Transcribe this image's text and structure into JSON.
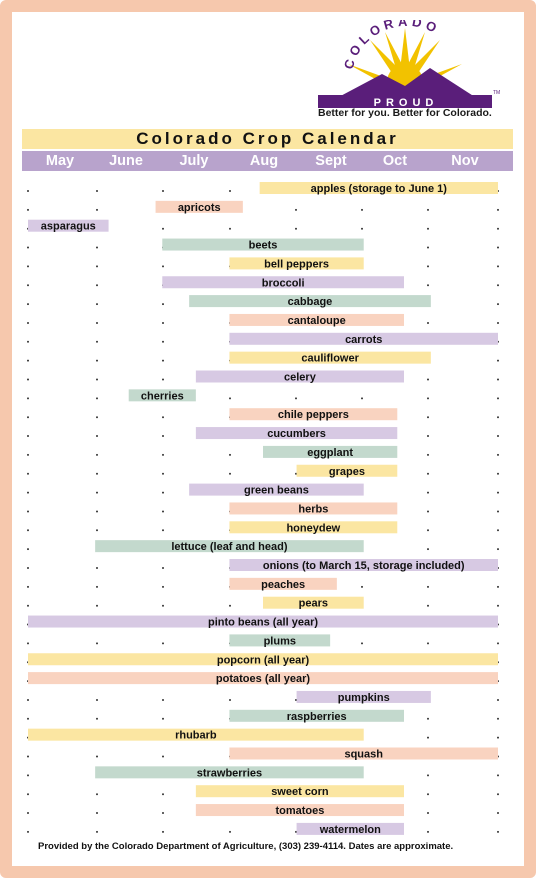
{
  "logo": {
    "arc_text": "COLORADO",
    "banner_text": "PROUD",
    "trademark": "TM",
    "tagline": "Better for you. Better for Colorado.",
    "colors": {
      "sun": "#f2c200",
      "mountain": "#5a1e7a",
      "banner": "#ffffff"
    }
  },
  "chart_data": {
    "type": "bar",
    "orientation": "horizontal",
    "title": "Colorado Crop Calendar",
    "months": [
      "May",
      "June",
      "July",
      "Aug",
      "Sept",
      "Oct",
      "Nov"
    ],
    "bar_colors": {
      "yellow": "#fbe6a2",
      "peach": "#f9d3c0",
      "purple": "#d7c9e3",
      "green": "#c3d9cd"
    },
    "crops": [
      {
        "label": "apples (storage to June 1)",
        "start": 3.45,
        "end": 7.0,
        "color": "yellow"
      },
      {
        "label": "apricots",
        "start": 1.9,
        "end": 3.2,
        "color": "peach"
      },
      {
        "label": "asparagus",
        "start": 0.0,
        "end": 1.2,
        "color": "purple"
      },
      {
        "label": "beets",
        "start": 2.0,
        "end": 5.0,
        "color": "green"
      },
      {
        "label": "bell peppers",
        "start": 3.0,
        "end": 5.0,
        "color": "yellow"
      },
      {
        "label": "broccoli",
        "start": 2.0,
        "end": 5.6,
        "color": "purple"
      },
      {
        "label": "cabbage",
        "start": 2.4,
        "end": 6.0,
        "color": "green"
      },
      {
        "label": "cantaloupe",
        "start": 3.0,
        "end": 5.6,
        "color": "peach"
      },
      {
        "label": "carrots",
        "start": 3.0,
        "end": 7.0,
        "color": "purple"
      },
      {
        "label": "cauliflower",
        "start": 3.0,
        "end": 6.0,
        "color": "yellow"
      },
      {
        "label": "celery",
        "start": 2.5,
        "end": 5.6,
        "color": "purple"
      },
      {
        "label": "cherries",
        "start": 1.5,
        "end": 2.5,
        "color": "green"
      },
      {
        "label": "chile peppers",
        "start": 3.0,
        "end": 5.5,
        "color": "peach"
      },
      {
        "label": "cucumbers",
        "start": 2.5,
        "end": 5.5,
        "color": "purple"
      },
      {
        "label": "eggplant",
        "start": 3.5,
        "end": 5.5,
        "color": "green"
      },
      {
        "label": "grapes",
        "start": 4.0,
        "end": 5.5,
        "color": "yellow"
      },
      {
        "label": "green beans",
        "start": 2.4,
        "end": 5.0,
        "color": "purple"
      },
      {
        "label": "herbs",
        "start": 3.0,
        "end": 5.5,
        "color": "peach"
      },
      {
        "label": "honeydew",
        "start": 3.0,
        "end": 5.5,
        "color": "yellow"
      },
      {
        "label": "lettuce (leaf and head)",
        "start": 1.0,
        "end": 5.0,
        "color": "green"
      },
      {
        "label": "onions (to March 15, storage included)",
        "start": 3.0,
        "end": 7.0,
        "color": "purple"
      },
      {
        "label": "peaches",
        "start": 3.0,
        "end": 4.6,
        "color": "peach"
      },
      {
        "label": "pears",
        "start": 3.5,
        "end": 5.0,
        "color": "yellow"
      },
      {
        "label": "pinto beans (all year)",
        "start": 0.0,
        "end": 7.0,
        "color": "purple"
      },
      {
        "label": "plums",
        "start": 3.0,
        "end": 4.5,
        "color": "green"
      },
      {
        "label": "popcorn (all year)",
        "start": 0.0,
        "end": 7.0,
        "color": "yellow"
      },
      {
        "label": "potatoes (all year)",
        "start": 0.0,
        "end": 7.0,
        "color": "peach"
      },
      {
        "label": "pumpkins",
        "start": 4.0,
        "end": 6.0,
        "color": "purple"
      },
      {
        "label": "raspberries",
        "start": 3.0,
        "end": 5.6,
        "color": "green"
      },
      {
        "label": "rhubarb",
        "start": 0.0,
        "end": 5.0,
        "color": "yellow"
      },
      {
        "label": "squash",
        "start": 3.0,
        "end": 7.0,
        "color": "peach"
      },
      {
        "label": "strawberries",
        "start": 1.0,
        "end": 5.0,
        "color": "green"
      },
      {
        "label": "sweet corn",
        "start": 2.5,
        "end": 5.6,
        "color": "yellow"
      },
      {
        "label": "tomatoes",
        "start": 2.5,
        "end": 5.6,
        "color": "peach"
      },
      {
        "label": "watermelon",
        "start": 4.0,
        "end": 5.6,
        "color": "purple"
      }
    ]
  },
  "footer": "Provided by the Colorado Department of Agriculture, (303) 239-4114. Dates are approximate."
}
